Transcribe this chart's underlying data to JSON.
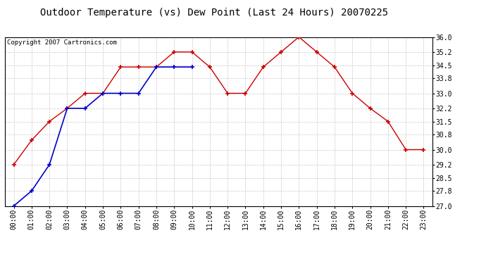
{
  "title": "Outdoor Temperature (vs) Dew Point (Last 24 Hours) 20070225",
  "copyright": "Copyright 2007 Cartronics.com",
  "x_labels": [
    "00:00",
    "01:00",
    "02:00",
    "03:00",
    "04:00",
    "05:00",
    "06:00",
    "07:00",
    "08:00",
    "09:00",
    "10:00",
    "11:00",
    "12:00",
    "13:00",
    "14:00",
    "15:00",
    "16:00",
    "17:00",
    "18:00",
    "19:00",
    "20:00",
    "21:00",
    "22:00",
    "23:00"
  ],
  "temp_red": [
    29.2,
    30.5,
    31.5,
    32.2,
    33.0,
    33.0,
    34.4,
    34.4,
    34.4,
    35.2,
    35.2,
    34.4,
    33.0,
    33.0,
    34.4,
    35.2,
    36.0,
    35.2,
    34.4,
    33.0,
    32.2,
    31.5,
    30.0,
    30.0
  ],
  "temp_blue": [
    27.0,
    27.8,
    29.2,
    32.2,
    32.2,
    33.0,
    33.0,
    33.0,
    34.4,
    34.4,
    34.4,
    null,
    null,
    null,
    null,
    null,
    null,
    null,
    null,
    null,
    null,
    null,
    null,
    null
  ],
  "y_min": 27.0,
  "y_max": 36.0,
  "y_ticks": [
    27.0,
    27.8,
    28.5,
    29.2,
    30.0,
    30.8,
    31.5,
    32.2,
    33.0,
    33.8,
    34.5,
    35.2,
    36.0
  ],
  "red_color": "#cc0000",
  "blue_color": "#0000cc",
  "bg_color": "#ffffff",
  "plot_bg_color": "#ffffff",
  "grid_color": "#c8c8c8",
  "title_fontsize": 10,
  "copyright_fontsize": 6.5,
  "tick_fontsize": 7
}
